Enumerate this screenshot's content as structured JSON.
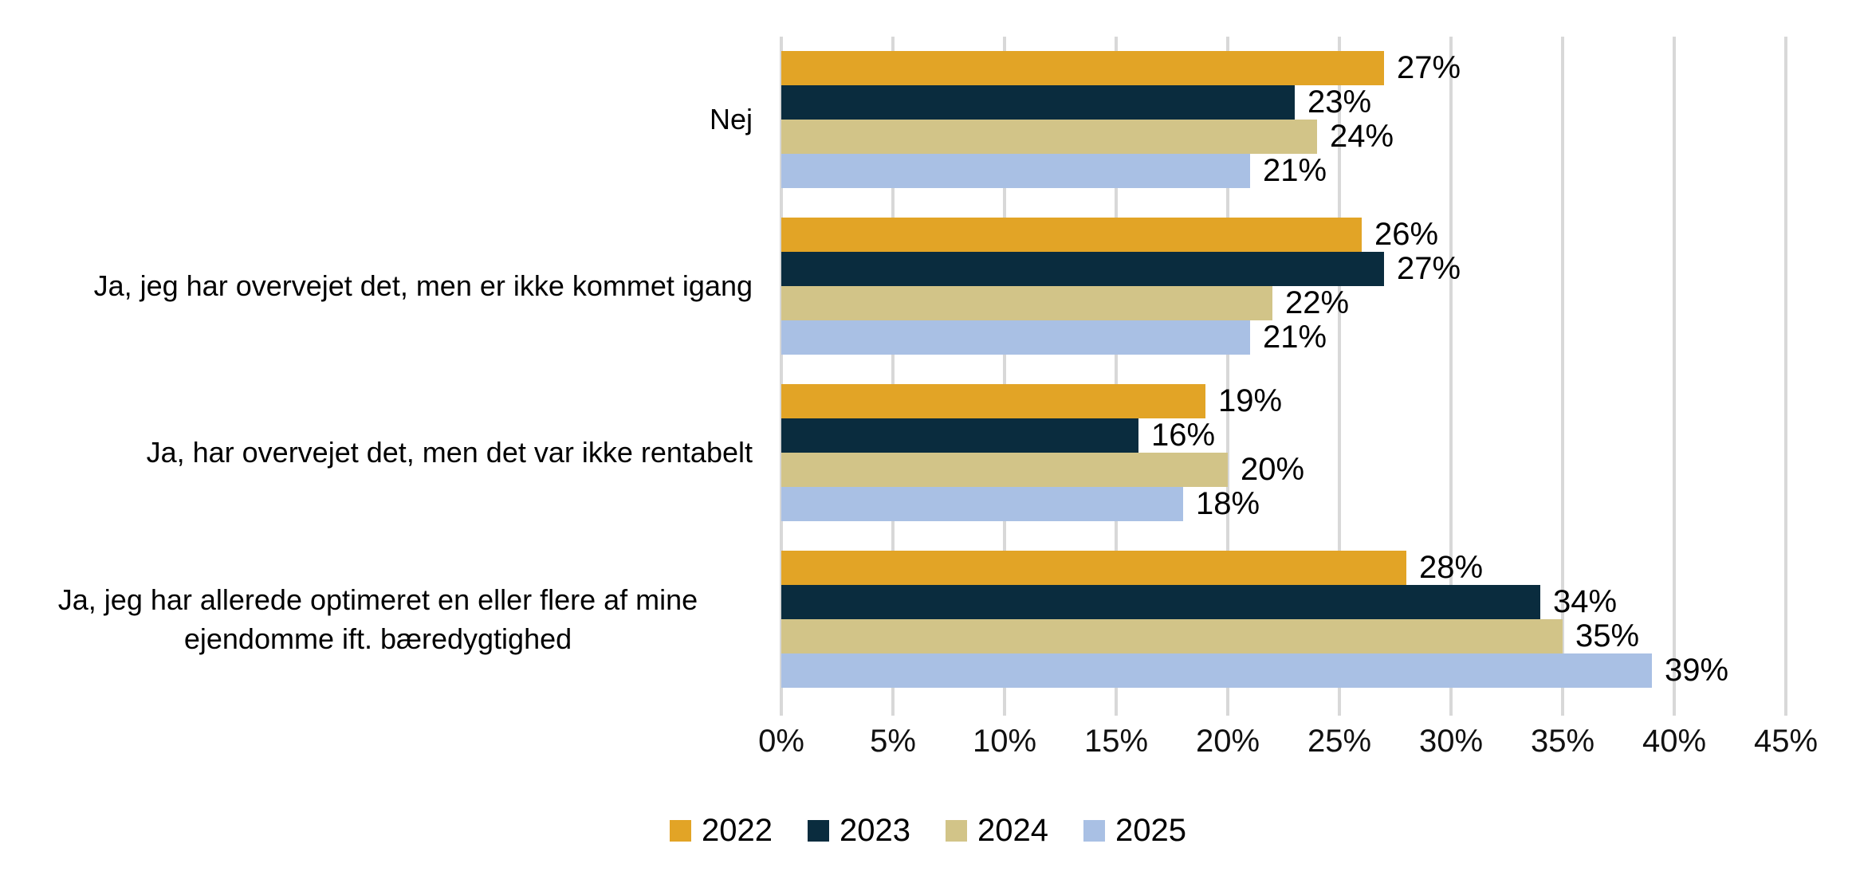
{
  "chart_data": {
    "type": "bar",
    "orientation": "horizontal",
    "title": "",
    "xlabel": "",
    "ylabel": "",
    "xlim": [
      0,
      45
    ],
    "grid": true,
    "data_labels": true,
    "value_suffix": "%",
    "legend_position": "bottom",
    "categories": [
      "Nej",
      "Ja, jeg har overvejet det, men er ikke kommet igang",
      "Ja, har overvejet det, men det var ikke rentabelt",
      "Ja, jeg har allerede optimeret en eller flere af mine ejendomme ift. bæredygtighed"
    ],
    "series": [
      {
        "name": "2022",
        "color": "#E2A426",
        "values": [
          27,
          26,
          19,
          28
        ]
      },
      {
        "name": "2023",
        "color": "#0A2C3E",
        "values": [
          23,
          27,
          16,
          34
        ]
      },
      {
        "name": "2024",
        "color": "#D2C488",
        "values": [
          24,
          22,
          20,
          35
        ]
      },
      {
        "name": "2025",
        "color": "#A9C0E4",
        "values": [
          21,
          21,
          18,
          39
        ]
      }
    ],
    "x_ticks": [
      "0%",
      "5%",
      "10%",
      "15%",
      "20%",
      "25%",
      "30%",
      "35%",
      "40%",
      "45%"
    ]
  },
  "colors": {
    "gridline": "#d8d8d8",
    "text": "#000000",
    "background": "#ffffff"
  }
}
